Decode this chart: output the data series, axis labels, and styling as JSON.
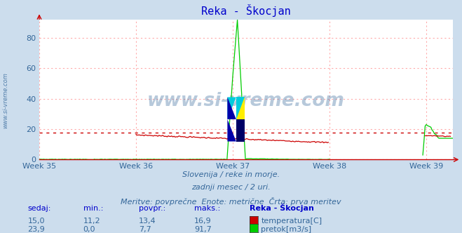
{
  "title": "Reka - Škocjan",
  "title_color": "#0000cc",
  "bg_color": "#ccdded",
  "plot_bg_color": "#ffffff",
  "grid_color": "#ffaaaa",
  "axis_color": "#cc0000",
  "tick_color": "#336699",
  "ylabel_max": 91.7,
  "ylabel_min": 0,
  "yticks": [
    0,
    20,
    40,
    60,
    80
  ],
  "xweeks": [
    "Week 35",
    "Week 36",
    "Week 37",
    "Week 38",
    "Week 39"
  ],
  "xweek_positions": [
    0,
    84,
    168,
    252,
    336
  ],
  "total_points": 360,
  "temp_color": "#cc0000",
  "flow_color": "#00cc00",
  "temp_avg_line": 17.5,
  "footer_line1": "Slovenija / reke in morje.",
  "footer_line2": "zadnji mesec / 2 uri.",
  "footer_line3": "Meritve: povprečne  Enote: metrične  Črta: prva meritev",
  "footer_color": "#336699",
  "table_header_color": "#0000cc",
  "table_value_color": "#336699",
  "table_headers": [
    "sedaj:",
    "min.:",
    "povpr.:",
    "maks.:",
    "Reka - Škocjan"
  ],
  "temp_row": [
    "15,0",
    "11,2",
    "13,4",
    "16,9",
    "temperatura[C]"
  ],
  "flow_row": [
    "23,9",
    "0,0",
    "7,7",
    "91,7",
    "pretok[m3/s]"
  ],
  "watermark": "www.si-vreme.com",
  "watermark_color": "#336699",
  "side_watermark": "www.si-vreme.com"
}
